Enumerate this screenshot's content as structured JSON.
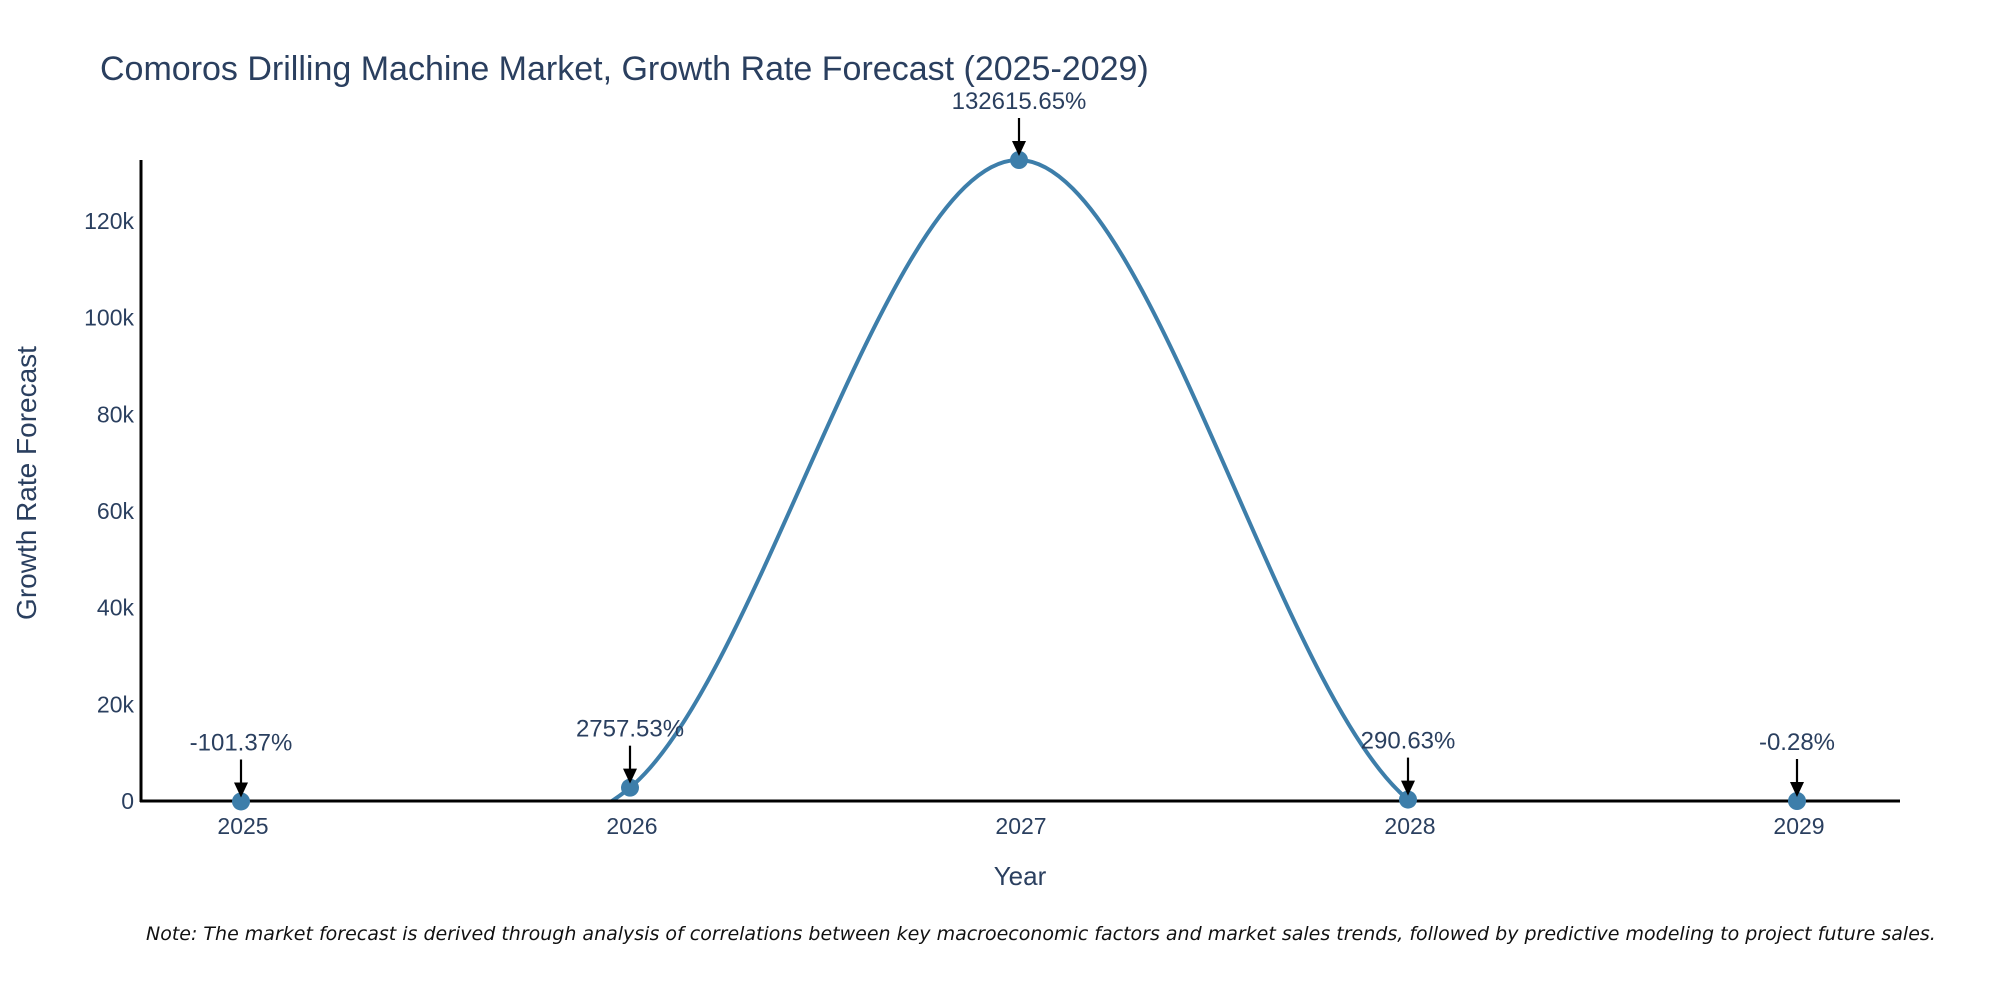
{
  "chart_data": {
    "type": "line",
    "title": "Comoros Drilling Machine Market, Growth Rate Forecast (2025-2029)",
    "xlabel": "Year",
    "ylabel": "Growth Rate Forecast",
    "categories": [
      "2025",
      "2026",
      "2027",
      "2028",
      "2029"
    ],
    "series": [
      {
        "name": "Growth Rate Forecast",
        "values": [
          -101.37,
          2757.53,
          132615.65,
          290.63,
          -0.28
        ],
        "labels": [
          "-101.37%",
          "2757.53%",
          "132615.65%",
          "290.63%",
          "-0.28%"
        ]
      }
    ],
    "ylim": [
      0,
      132615.65
    ],
    "yticks": [
      0,
      20000,
      40000,
      60000,
      80000,
      100000,
      120000
    ],
    "ytick_labels": [
      "0",
      "20k",
      "40k",
      "60k",
      "80k",
      "100k",
      "120k"
    ],
    "line_color": "#3d7eaa",
    "marker_color": "#3d7eaa",
    "text_color": "#2a3f5f",
    "grid": false,
    "legend": "none"
  },
  "note": "Note: The market forecast is derived through analysis of correlations between key macroeconomic factors and market sales trends, followed by predictive modeling to project future sales."
}
